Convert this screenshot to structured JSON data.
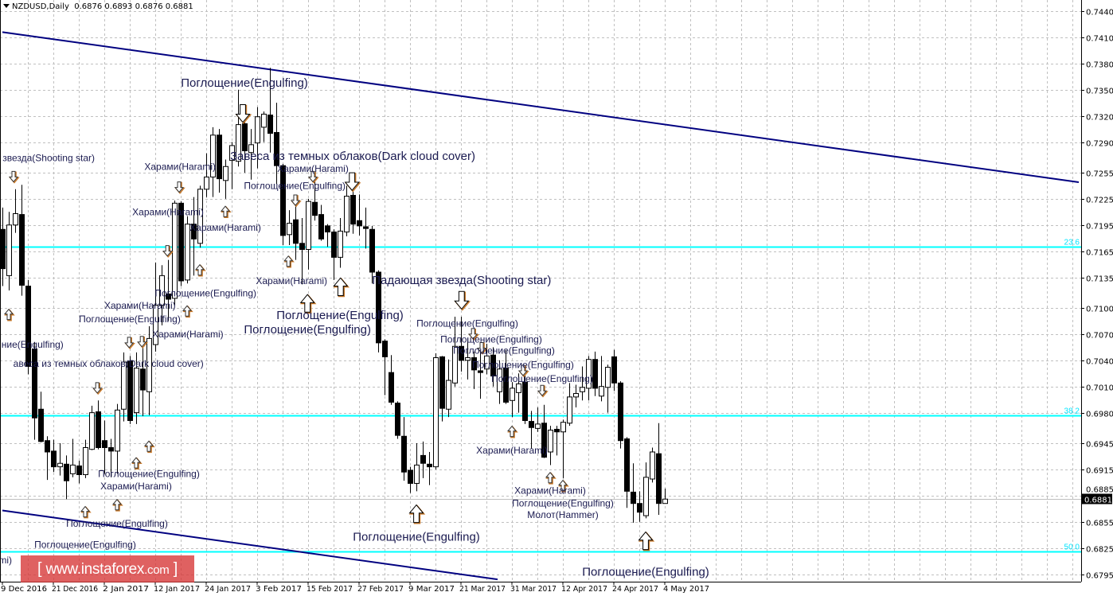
{
  "header": {
    "symbol": "NZDUSD,Daily",
    "ohlc": "0.6876 0.6893 0.6876 0.6881"
  },
  "watermark": {
    "text": "www.instaforex.com"
  },
  "colors": {
    "background": "#ffffff",
    "grid": "#c0c0c0",
    "candle_bull": "#ffffff",
    "candle_bear": "#000000",
    "trendline": "#000080",
    "fibo": "#00ffff",
    "fibo_label": "#00e5ff",
    "annotation_text": "#1a1a50",
    "arrow_outline": "#c87828",
    "price_line": "#c0c0c0"
  },
  "chart_data": {
    "type": "candlestick",
    "grid": true,
    "ylim": [
      0.6785,
      0.7453
    ],
    "y_ticks": [
      "0.7440",
      "0.7410",
      "0.7380",
      "0.7350",
      "0.7320",
      "0.7290",
      "0.7255",
      "0.7225",
      "0.7195",
      "0.7165",
      "0.7135",
      "0.7100",
      "0.7070",
      "0.7040",
      "0.7010",
      "0.6980",
      "0.6945",
      "0.6915",
      "0.6885",
      "0.6855",
      "0.6825",
      "0.6795"
    ],
    "x_ticks": [
      {
        "index": 0,
        "label": "9 Dec 2016"
      },
      {
        "index": 8,
        "label": "21 Dec 2016"
      },
      {
        "index": 16,
        "label": "2 Jan 2017"
      },
      {
        "index": 24,
        "label": "12 Jan 2017"
      },
      {
        "index": 32,
        "label": "24 Jan 2017"
      },
      {
        "index": 40,
        "label": "3 Feb 2017"
      },
      {
        "index": 48,
        "label": "15 Feb 2017"
      },
      {
        "index": 56,
        "label": "27 Feb 2017"
      },
      {
        "index": 64,
        "label": "9 Mar 2017"
      },
      {
        "index": 72,
        "label": "21 Mar 2017"
      },
      {
        "index": 80,
        "label": "31 Mar 2017"
      },
      {
        "index": 88,
        "label": "12 Apr 2017"
      },
      {
        "index": 96,
        "label": "24 Apr 2017"
      },
      {
        "index": 104,
        "label": "4 May 2017"
      }
    ],
    "current_price": "0.6881",
    "ohlc": [
      [
        0.719,
        0.7215,
        0.7125,
        0.7145
      ],
      [
        0.7137,
        0.721,
        0.712,
        0.7195
      ],
      [
        0.7195,
        0.7236,
        0.7186,
        0.7208
      ],
      [
        0.7207,
        0.7241,
        0.7114,
        0.7126
      ],
      [
        0.7125,
        0.7132,
        0.7024,
        0.7033
      ],
      [
        0.7053,
        0.7061,
        0.6949,
        0.6974
      ],
      [
        0.6984,
        0.7004,
        0.6946,
        0.6947
      ],
      [
        0.6948,
        0.6953,
        0.6903,
        0.6935
      ],
      [
        0.6936,
        0.6949,
        0.6912,
        0.6918
      ],
      [
        0.6918,
        0.6945,
        0.6908,
        0.6922
      ],
      [
        0.6921,
        0.6931,
        0.6881,
        0.6902
      ],
      [
        0.691,
        0.695,
        0.6906,
        0.692
      ],
      [
        0.6919,
        0.6925,
        0.6899,
        0.6909
      ],
      [
        0.6909,
        0.6949,
        0.6905,
        0.694
      ],
      [
        0.6938,
        0.6988,
        0.6937,
        0.698
      ],
      [
        0.6981,
        0.6994,
        0.6938,
        0.694
      ],
      [
        0.6948,
        0.6971,
        0.691,
        0.694
      ],
      [
        0.694,
        0.695,
        0.6906,
        0.6936
      ],
      [
        0.6936,
        0.699,
        0.691,
        0.6983
      ],
      [
        0.6984,
        0.7049,
        0.697,
        0.7038
      ],
      [
        0.7039,
        0.7045,
        0.6967,
        0.6971
      ],
      [
        0.698,
        0.7049,
        0.6967,
        0.7031
      ],
      [
        0.703,
        0.7058,
        0.6976,
        0.7006
      ],
      [
        0.7004,
        0.7079,
        0.6977,
        0.7065
      ],
      [
        0.7058,
        0.7152,
        0.705,
        0.7103
      ],
      [
        0.7103,
        0.7149,
        0.708,
        0.7137
      ],
      [
        0.7116,
        0.7155,
        0.7085,
        0.711
      ],
      [
        0.7111,
        0.7223,
        0.7103,
        0.722
      ],
      [
        0.722,
        0.7222,
        0.7125,
        0.7131
      ],
      [
        0.7132,
        0.7205,
        0.7128,
        0.7196
      ],
      [
        0.7196,
        0.7227,
        0.7137,
        0.7179
      ],
      [
        0.7174,
        0.724,
        0.7169,
        0.7236
      ],
      [
        0.7236,
        0.7277,
        0.7227,
        0.725
      ],
      [
        0.725,
        0.7307,
        0.7227,
        0.7298
      ],
      [
        0.7298,
        0.7305,
        0.7232,
        0.7248
      ],
      [
        0.7246,
        0.727,
        0.7225,
        0.7262
      ],
      [
        0.7269,
        0.729,
        0.7236,
        0.7286
      ],
      [
        0.7268,
        0.735,
        0.7262,
        0.731
      ],
      [
        0.7311,
        0.732,
        0.7255,
        0.728
      ],
      [
        0.7278,
        0.7305,
        0.7247,
        0.7287
      ],
      [
        0.7289,
        0.733,
        0.726,
        0.7319
      ],
      [
        0.7307,
        0.7325,
        0.729,
        0.7322
      ],
      [
        0.7321,
        0.7375,
        0.7278,
        0.73
      ],
      [
        0.7301,
        0.7335,
        0.7242,
        0.7263
      ],
      [
        0.7263,
        0.7265,
        0.7172,
        0.7183
      ],
      [
        0.7184,
        0.7212,
        0.7172,
        0.7197
      ],
      [
        0.7201,
        0.7225,
        0.7155,
        0.7174
      ],
      [
        0.7174,
        0.7203,
        0.7127,
        0.7167
      ],
      [
        0.7167,
        0.7225,
        0.7144,
        0.7222
      ],
      [
        0.7221,
        0.725,
        0.72,
        0.7206
      ],
      [
        0.7207,
        0.7218,
        0.7177,
        0.7179
      ],
      [
        0.7194,
        0.7196,
        0.717,
        0.7187
      ],
      [
        0.7187,
        0.719,
        0.7132,
        0.7158
      ],
      [
        0.7158,
        0.7203,
        0.7146,
        0.7188
      ],
      [
        0.7187,
        0.724,
        0.7182,
        0.7228
      ],
      [
        0.7229,
        0.724,
        0.7185,
        0.7196
      ],
      [
        0.72,
        0.723,
        0.7183,
        0.7194
      ],
      [
        0.7193,
        0.7215,
        0.7168,
        0.7191
      ],
      [
        0.719,
        0.7194,
        0.7128,
        0.7141
      ],
      [
        0.7141,
        0.7143,
        0.7049,
        0.706
      ],
      [
        0.7062,
        0.7064,
        0.7,
        0.7044
      ],
      [
        0.7026,
        0.7046,
        0.6989,
        0.6992
      ],
      [
        0.6991,
        0.6993,
        0.695,
        0.6954
      ],
      [
        0.6953,
        0.6975,
        0.6902,
        0.6912
      ],
      [
        0.6914,
        0.6918,
        0.6888,
        0.6899
      ],
      [
        0.6899,
        0.6945,
        0.689,
        0.692
      ],
      [
        0.6931,
        0.6947,
        0.6905,
        0.6922
      ],
      [
        0.6921,
        0.6935,
        0.6897,
        0.6918
      ],
      [
        0.6918,
        0.7048,
        0.6915,
        0.7043
      ],
      [
        0.7044,
        0.7045,
        0.697,
        0.6985
      ],
      [
        0.6984,
        0.7041,
        0.6975,
        0.7017
      ],
      [
        0.7014,
        0.709,
        0.701,
        0.7056
      ],
      [
        0.7056,
        0.709,
        0.7027,
        0.704
      ],
      [
        0.704,
        0.7065,
        0.7018,
        0.7043
      ],
      [
        0.7043,
        0.705,
        0.7007,
        0.7029
      ],
      [
        0.7028,
        0.7052,
        0.6996,
        0.7026
      ],
      [
        0.703,
        0.7059,
        0.7024,
        0.7045
      ],
      [
        0.7046,
        0.7055,
        0.701,
        0.7022
      ],
      [
        0.7004,
        0.704,
        0.699,
        0.703
      ],
      [
        0.7031,
        0.7052,
        0.699,
        0.6992
      ],
      [
        0.6994,
        0.7015,
        0.6975,
        0.7008
      ],
      [
        0.7003,
        0.7025,
        0.698,
        0.7013
      ],
      [
        0.7015,
        0.7025,
        0.6967,
        0.6971
      ],
      [
        0.697,
        0.6982,
        0.6939,
        0.6963
      ],
      [
        0.6962,
        0.6986,
        0.6958,
        0.6967
      ],
      [
        0.6968,
        0.6989,
        0.6928,
        0.6929
      ],
      [
        0.6935,
        0.6965,
        0.692,
        0.696
      ],
      [
        0.6961,
        0.6965,
        0.6931,
        0.6958
      ],
      [
        0.6958,
        0.6972,
        0.6905,
        0.6969
      ],
      [
        0.6968,
        0.7014,
        0.6965,
        0.6998
      ],
      [
        0.6998,
        0.7012,
        0.6986,
        0.7002
      ],
      [
        0.7004,
        0.7033,
        0.6994,
        0.7009
      ],
      [
        0.7008,
        0.7045,
        0.6994,
        0.7041
      ],
      [
        0.7041,
        0.705,
        0.6999,
        0.7008
      ],
      [
        0.6999,
        0.7045,
        0.6993,
        0.701
      ],
      [
        0.7009,
        0.7035,
        0.698,
        0.7032
      ],
      [
        0.7044,
        0.7052,
        0.7005,
        0.7014
      ],
      [
        0.7014,
        0.7016,
        0.6939,
        0.6948
      ],
      [
        0.695,
        0.6952,
        0.6871,
        0.689
      ],
      [
        0.6889,
        0.6922,
        0.6854,
        0.6876
      ],
      [
        0.6876,
        0.689,
        0.6855,
        0.6866
      ],
      [
        0.6862,
        0.6923,
        0.6859,
        0.6906
      ],
      [
        0.6904,
        0.694,
        0.69,
        0.6935
      ],
      [
        0.6933,
        0.6968,
        0.6863,
        0.6876
      ],
      [
        0.6876,
        0.6893,
        0.6876,
        0.6881
      ]
    ],
    "trendlines": [
      {
        "from": {
          "index": 0,
          "price": 0.7416
        },
        "to": {
          "index": 169,
          "price": 0.7244
        }
      },
      {
        "from": {
          "index": 0,
          "price": 0.6868
        },
        "to": {
          "index": 77.75,
          "price": 0.6789
        }
      }
    ],
    "fibo_levels": [
      {
        "label": "23.6",
        "price": 0.717
      },
      {
        "label": "38.2",
        "price": 0.6977
      },
      {
        "label": "50.0",
        "price": 0.6821
      }
    ],
    "annotations": [
      {
        "text": "Поглощение(Engulfing)",
        "index": 38,
        "price": 0.7358,
        "size": "large"
      },
      {
        "text": "звезда(Shooting star)",
        "index": 14.5,
        "price": 0.7272,
        "size": "small",
        "anchor": "end"
      },
      {
        "text": "Харами(Harami)",
        "index": 27.9,
        "price": 0.7262,
        "size": "small"
      },
      {
        "text": "Завеса из темных облаков(Dark cloud cover)",
        "index": 55,
        "price": 0.7274,
        "size": "large"
      },
      {
        "text": "Харами(Harami)",
        "index": 48.75,
        "price": 0.7263,
        "size": "small"
      },
      {
        "text": "Поглощение(Engulfing)",
        "index": 45.9,
        "price": 0.724,
        "size": "small"
      },
      {
        "text": "Харами(Harami)",
        "index": 26,
        "price": 0.721,
        "size": "small"
      },
      {
        "text": "Харами(Harami)",
        "index": 35,
        "price": 0.7192,
        "size": "small"
      },
      {
        "text": "Харами(Harami)",
        "index": 45.4,
        "price": 0.7131,
        "size": "small"
      },
      {
        "text": "Падающая звезда(Shooting star)",
        "index": 72.1,
        "price": 0.7132,
        "size": "large"
      },
      {
        "text": "Поглощение(Engulfing)",
        "index": 31.9,
        "price": 0.7117,
        "size": "small"
      },
      {
        "text": "Харами(Harami)",
        "index": 21.6,
        "price": 0.7108,
        "size": "small"
      },
      {
        "text": "Поглощение(Engulfing)",
        "index": 53,
        "price": 0.7092,
        "size": "large"
      },
      {
        "text": "Поглощение(Engulfing)",
        "index": 20,
        "price": 0.7087,
        "size": "small"
      },
      {
        "text": "Поглощение(Engulfing)",
        "index": 47.9,
        "price": 0.7081,
        "size": "large"
      },
      {
        "text": "Поглощение(Engulfing)",
        "index": 73,
        "price": 0.7082,
        "size": "small"
      },
      {
        "text": "Харами(Harami)",
        "index": 29.1,
        "price": 0.707,
        "size": "small"
      },
      {
        "text": "ние(Engulfing)",
        "index": 9.6,
        "price": 0.7058,
        "size": "small",
        "anchor": "end"
      },
      {
        "text": "Поглощение(Engulfing)",
        "index": 76.75,
        "price": 0.7064,
        "size": "small"
      },
      {
        "text": "Поглощение(Engulfing)",
        "index": 78.75,
        "price": 0.7053,
        "size": "small"
      },
      {
        "text": "авеса из темных облаков(Dark cloud cover)",
        "index": 31.6,
        "price": 0.7036,
        "size": "small",
        "anchor": "end"
      },
      {
        "text": "Поглощение(Engulfing)",
        "index": 81.75,
        "price": 0.7035,
        "size": "small"
      },
      {
        "text": "Поглощение(Engulfing)",
        "index": 84.75,
        "price": 0.7019,
        "size": "small"
      },
      {
        "text": "Харами(Harami)",
        "index": 80,
        "price": 0.6937,
        "size": "small"
      },
      {
        "text": "Поглощение(Engulfing)",
        "index": 23,
        "price": 0.691,
        "size": "small"
      },
      {
        "text": "Харами(Harami)",
        "index": 21,
        "price": 0.6896,
        "size": "small"
      },
      {
        "text": "Харами(Harami)",
        "index": 86,
        "price": 0.6891,
        "size": "small"
      },
      {
        "text": "Поглощение(Engulfing)",
        "index": 88,
        "price": 0.6876,
        "size": "small"
      },
      {
        "text": "Молот(Hammer)",
        "index": 88,
        "price": 0.6865,
        "size": "small"
      },
      {
        "text": "Поглощение(Engulfing)",
        "index": 18,
        "price": 0.6853,
        "size": "small"
      },
      {
        "text": "Поглощение(Engulfing)",
        "index": 65,
        "price": 0.6838,
        "size": "large"
      },
      {
        "text": "Поглощение(Engulfing)",
        "index": 13,
        "price": 0.6829,
        "size": "small"
      },
      {
        "text": "Харами(Harami)",
        "index": 10.9,
        "price": 0.6811,
        "size": "small"
      },
      {
        "text": "Поглощение(Engulfing)",
        "index": 101,
        "price": 0.6798,
        "size": "large"
      }
    ],
    "arrows": [
      {
        "dir": "down",
        "size": "small",
        "index": 1.75,
        "price": 0.725
      },
      {
        "dir": "down",
        "size": "small",
        "index": 14.9,
        "price": 0.7008
      },
      {
        "dir": "down",
        "size": "small",
        "index": 19.9,
        "price": 0.706
      },
      {
        "dir": "down",
        "size": "small",
        "index": 21.9,
        "price": 0.7061
      },
      {
        "dir": "down",
        "size": "small",
        "index": 25.9,
        "price": 0.7165
      },
      {
        "dir": "down",
        "size": "small",
        "index": 27.75,
        "price": 0.7238
      },
      {
        "dir": "down",
        "size": "small",
        "index": 46,
        "price": 0.7223
      },
      {
        "dir": "down",
        "size": "small",
        "index": 48.75,
        "price": 0.725
      },
      {
        "dir": "down",
        "size": "small",
        "index": 73.9,
        "price": 0.707
      },
      {
        "dir": "down",
        "size": "small",
        "index": 75.25,
        "price": 0.7054
      },
      {
        "dir": "down",
        "size": "small",
        "index": 81.75,
        "price": 0.7028
      },
      {
        "dir": "down",
        "size": "small",
        "index": 84.75,
        "price": 0.7005
      },
      {
        "dir": "up",
        "size": "small",
        "index": 1,
        "price": 0.7093
      },
      {
        "dir": "up",
        "size": "small",
        "index": 13,
        "price": 0.6867
      },
      {
        "dir": "up",
        "size": "small",
        "index": 18,
        "price": 0.6875
      },
      {
        "dir": "up",
        "size": "small",
        "index": 21,
        "price": 0.6923
      },
      {
        "dir": "up",
        "size": "small",
        "index": 23,
        "price": 0.6942
      },
      {
        "dir": "up",
        "size": "small",
        "index": 29,
        "price": 0.7097
      },
      {
        "dir": "up",
        "size": "small",
        "index": 31,
        "price": 0.7144
      },
      {
        "dir": "up",
        "size": "small",
        "index": 35,
        "price": 0.7211
      },
      {
        "dir": "up",
        "size": "small",
        "index": 44.9,
        "price": 0.7154
      },
      {
        "dir": "up",
        "size": "small",
        "index": 80,
        "price": 0.6959
      },
      {
        "dir": "up",
        "size": "small",
        "index": 86,
        "price": 0.6906
      },
      {
        "dir": "up",
        "size": "small",
        "index": 88,
        "price": 0.6897
      },
      {
        "dir": "down",
        "size": "large",
        "index": 37.75,
        "price": 0.7322
      },
      {
        "dir": "down",
        "size": "large",
        "index": 54.9,
        "price": 0.7244
      },
      {
        "dir": "down",
        "size": "large",
        "index": 72.1,
        "price": 0.7108
      },
      {
        "dir": "up",
        "size": "large",
        "index": 47.9,
        "price": 0.7106
      },
      {
        "dir": "up",
        "size": "large",
        "index": 53.1,
        "price": 0.7125
      },
      {
        "dir": "up",
        "size": "large",
        "index": 65,
        "price": 0.6865
      },
      {
        "dir": "up",
        "size": "large",
        "index": 101,
        "price": 0.6834
      }
    ]
  }
}
